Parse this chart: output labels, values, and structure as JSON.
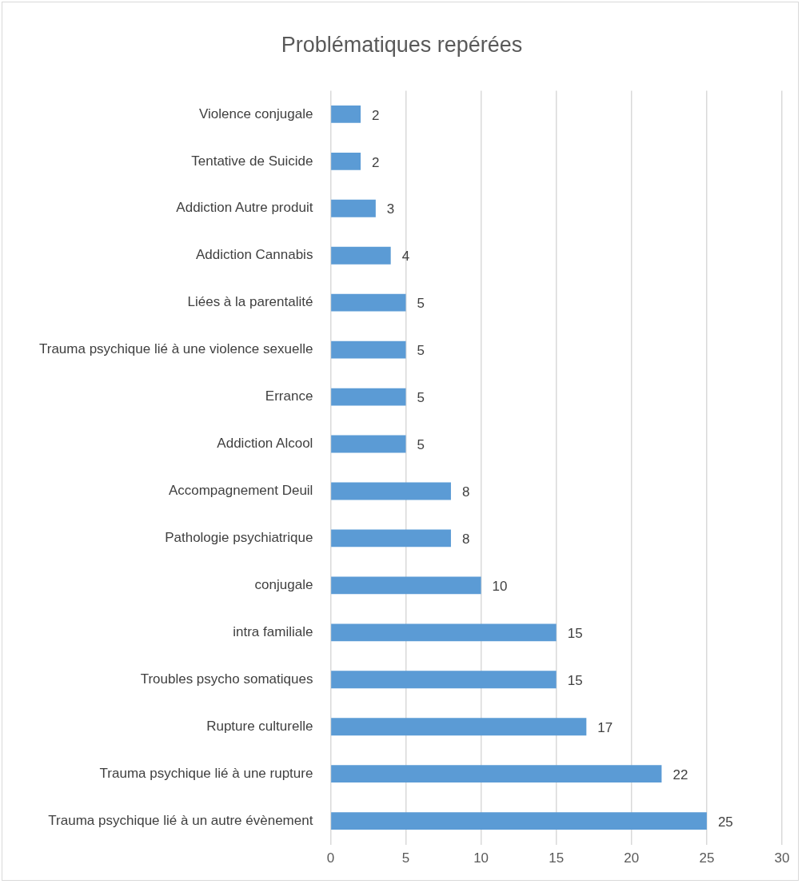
{
  "chart_data": {
    "type": "bar",
    "orientation": "horizontal",
    "title": "Problématiques repérées",
    "categories": [
      "Violence conjugale",
      "Tentative de Suicide",
      "Addiction Autre produit",
      "Addiction Cannabis",
      "Liées à la parentalité",
      "Trauma psychique lié à une violence sexuelle",
      "Errance",
      "Addiction Alcool",
      "Accompagnement Deuil",
      "Pathologie psychiatrique",
      "conjugale",
      "intra familiale",
      "Troubles psycho somatiques",
      "Rupture culturelle",
      "Trauma psychique lié à une rupture",
      "Trauma psychique lié à un autre évènement"
    ],
    "values": [
      2,
      2,
      3,
      4,
      5,
      5,
      5,
      5,
      8,
      8,
      10,
      15,
      15,
      17,
      22,
      25
    ],
    "color": "#5b9bd5",
    "xlim": [
      0,
      30
    ],
    "xticks": [
      0,
      5,
      10,
      15,
      20,
      25,
      30
    ],
    "grid": "x",
    "data_labels": true,
    "legend": false
  }
}
